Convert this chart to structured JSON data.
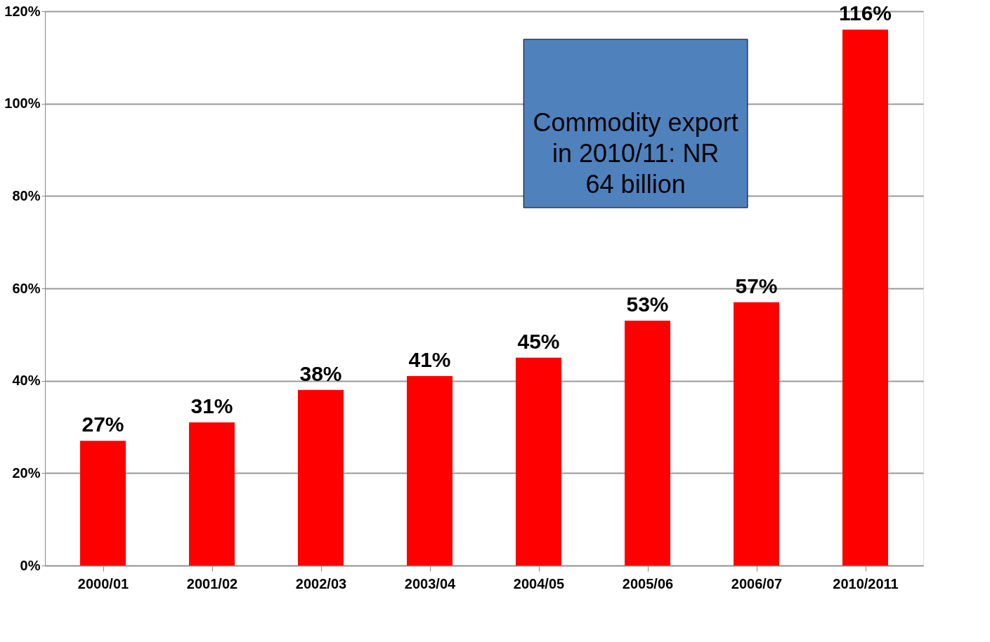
{
  "chart_data": {
    "type": "bar",
    "categories": [
      "2000/01",
      "2001/02",
      "2002/03",
      "2003/04",
      "2004/05",
      "2005/06",
      "2006/07",
      "2010/2011"
    ],
    "values": [
      27,
      31,
      38,
      41,
      45,
      53,
      57,
      116
    ],
    "value_labels": [
      "27%",
      "31%",
      "38%",
      "41%",
      "45%",
      "53%",
      "57%",
      "116%"
    ],
    "color": "#ff0000",
    "ylim": [
      0,
      120
    ],
    "yticks": [
      {
        "value": 0,
        "label": "0%"
      },
      {
        "value": 20,
        "label": "20%"
      },
      {
        "value": 40,
        "label": "40%"
      },
      {
        "value": 60,
        "label": "60%"
      },
      {
        "value": 80,
        "label": "80%"
      },
      {
        "value": 100,
        "label": "100%"
      },
      {
        "value": 120,
        "label": "120%"
      }
    ],
    "grid": "y",
    "annotations": [
      "Commodity export in 2010/11: NR 64 billion"
    ]
  }
}
